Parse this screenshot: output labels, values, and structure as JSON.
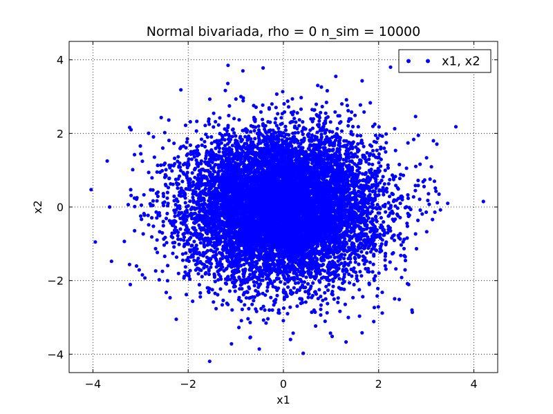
{
  "chart_data": {
    "type": "scatter",
    "title": "Normal bivariada, rho = 0 n_sim = 10000",
    "xlabel": "x1",
    "ylabel": "x2",
    "xlim": [
      -4.5,
      4.5
    ],
    "ylim": [
      -4.5,
      4.5
    ],
    "xticks": [
      -4,
      -2,
      0,
      2,
      4
    ],
    "yticks": [
      -4,
      -2,
      0,
      2,
      4
    ],
    "xtick_labels": [
      "−4",
      "−2",
      "0",
      "2",
      "4"
    ],
    "ytick_labels": [
      "−4",
      "−2",
      "0",
      "2",
      "4"
    ],
    "grid": true,
    "legend": {
      "position": "top-right"
    },
    "series": [
      {
        "name": "x1, x2",
        "color": "#0000ff",
        "marker": "circle",
        "distribution": {
          "kind": "bivariate-normal",
          "mean": [
            0,
            0
          ],
          "std": [
            1,
            1
          ],
          "rho": 0,
          "n": 10000
        },
        "notable_points": [
          {
            "x": 4.2,
            "y": 0.15
          },
          {
            "x": -3.95,
            "y": -0.95
          },
          {
            "x": -3.7,
            "y": 1.25
          },
          {
            "x": -3.65,
            "y": 0.0
          },
          {
            "x": -0.85,
            "y": 3.7
          },
          {
            "x": 2.25,
            "y": 3.8
          },
          {
            "x": 0.15,
            "y": -3.6
          },
          {
            "x": -0.7,
            "y": -3.55
          },
          {
            "x": 3.45,
            "y": 0.1
          },
          {
            "x": 3.15,
            "y": 1.8
          },
          {
            "x": 2.7,
            "y": -2.8
          },
          {
            "x": -2.25,
            "y": -3.05
          },
          {
            "x": -3.2,
            "y": 2.1
          },
          {
            "x": 1.1,
            "y": 3.55
          }
        ]
      }
    ]
  }
}
